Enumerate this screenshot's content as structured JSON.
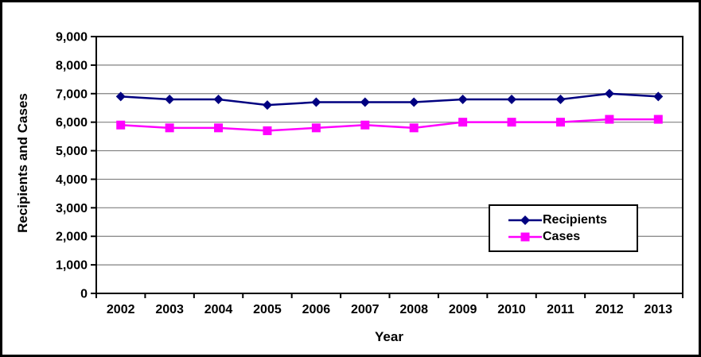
{
  "chart_data": {
    "type": "line",
    "title": "",
    "xlabel": "Year",
    "ylabel": "Recipients and Cases",
    "categories": [
      "2002",
      "2003",
      "2004",
      "2005",
      "2006",
      "2007",
      "2008",
      "2009",
      "2010",
      "2011",
      "2012",
      "2013"
    ],
    "series": [
      {
        "name": "Recipients",
        "marker": "diamond",
        "color": "#000080",
        "values": [
          6900,
          6800,
          6800,
          6600,
          6700,
          6700,
          6700,
          6800,
          6800,
          6800,
          7000,
          6900
        ]
      },
      {
        "name": "Cases",
        "marker": "square",
        "color": "#FF00FF",
        "values": [
          5900,
          5800,
          5800,
          5700,
          5800,
          5900,
          5800,
          6000,
          6000,
          6000,
          6100,
          6100
        ]
      }
    ],
    "ylim": [
      0,
      9000
    ],
    "y_tick_step": 1000,
    "grid": true,
    "gridline_color": "#808080",
    "axis_color": "#000000",
    "legend_position": "inside-right"
  }
}
